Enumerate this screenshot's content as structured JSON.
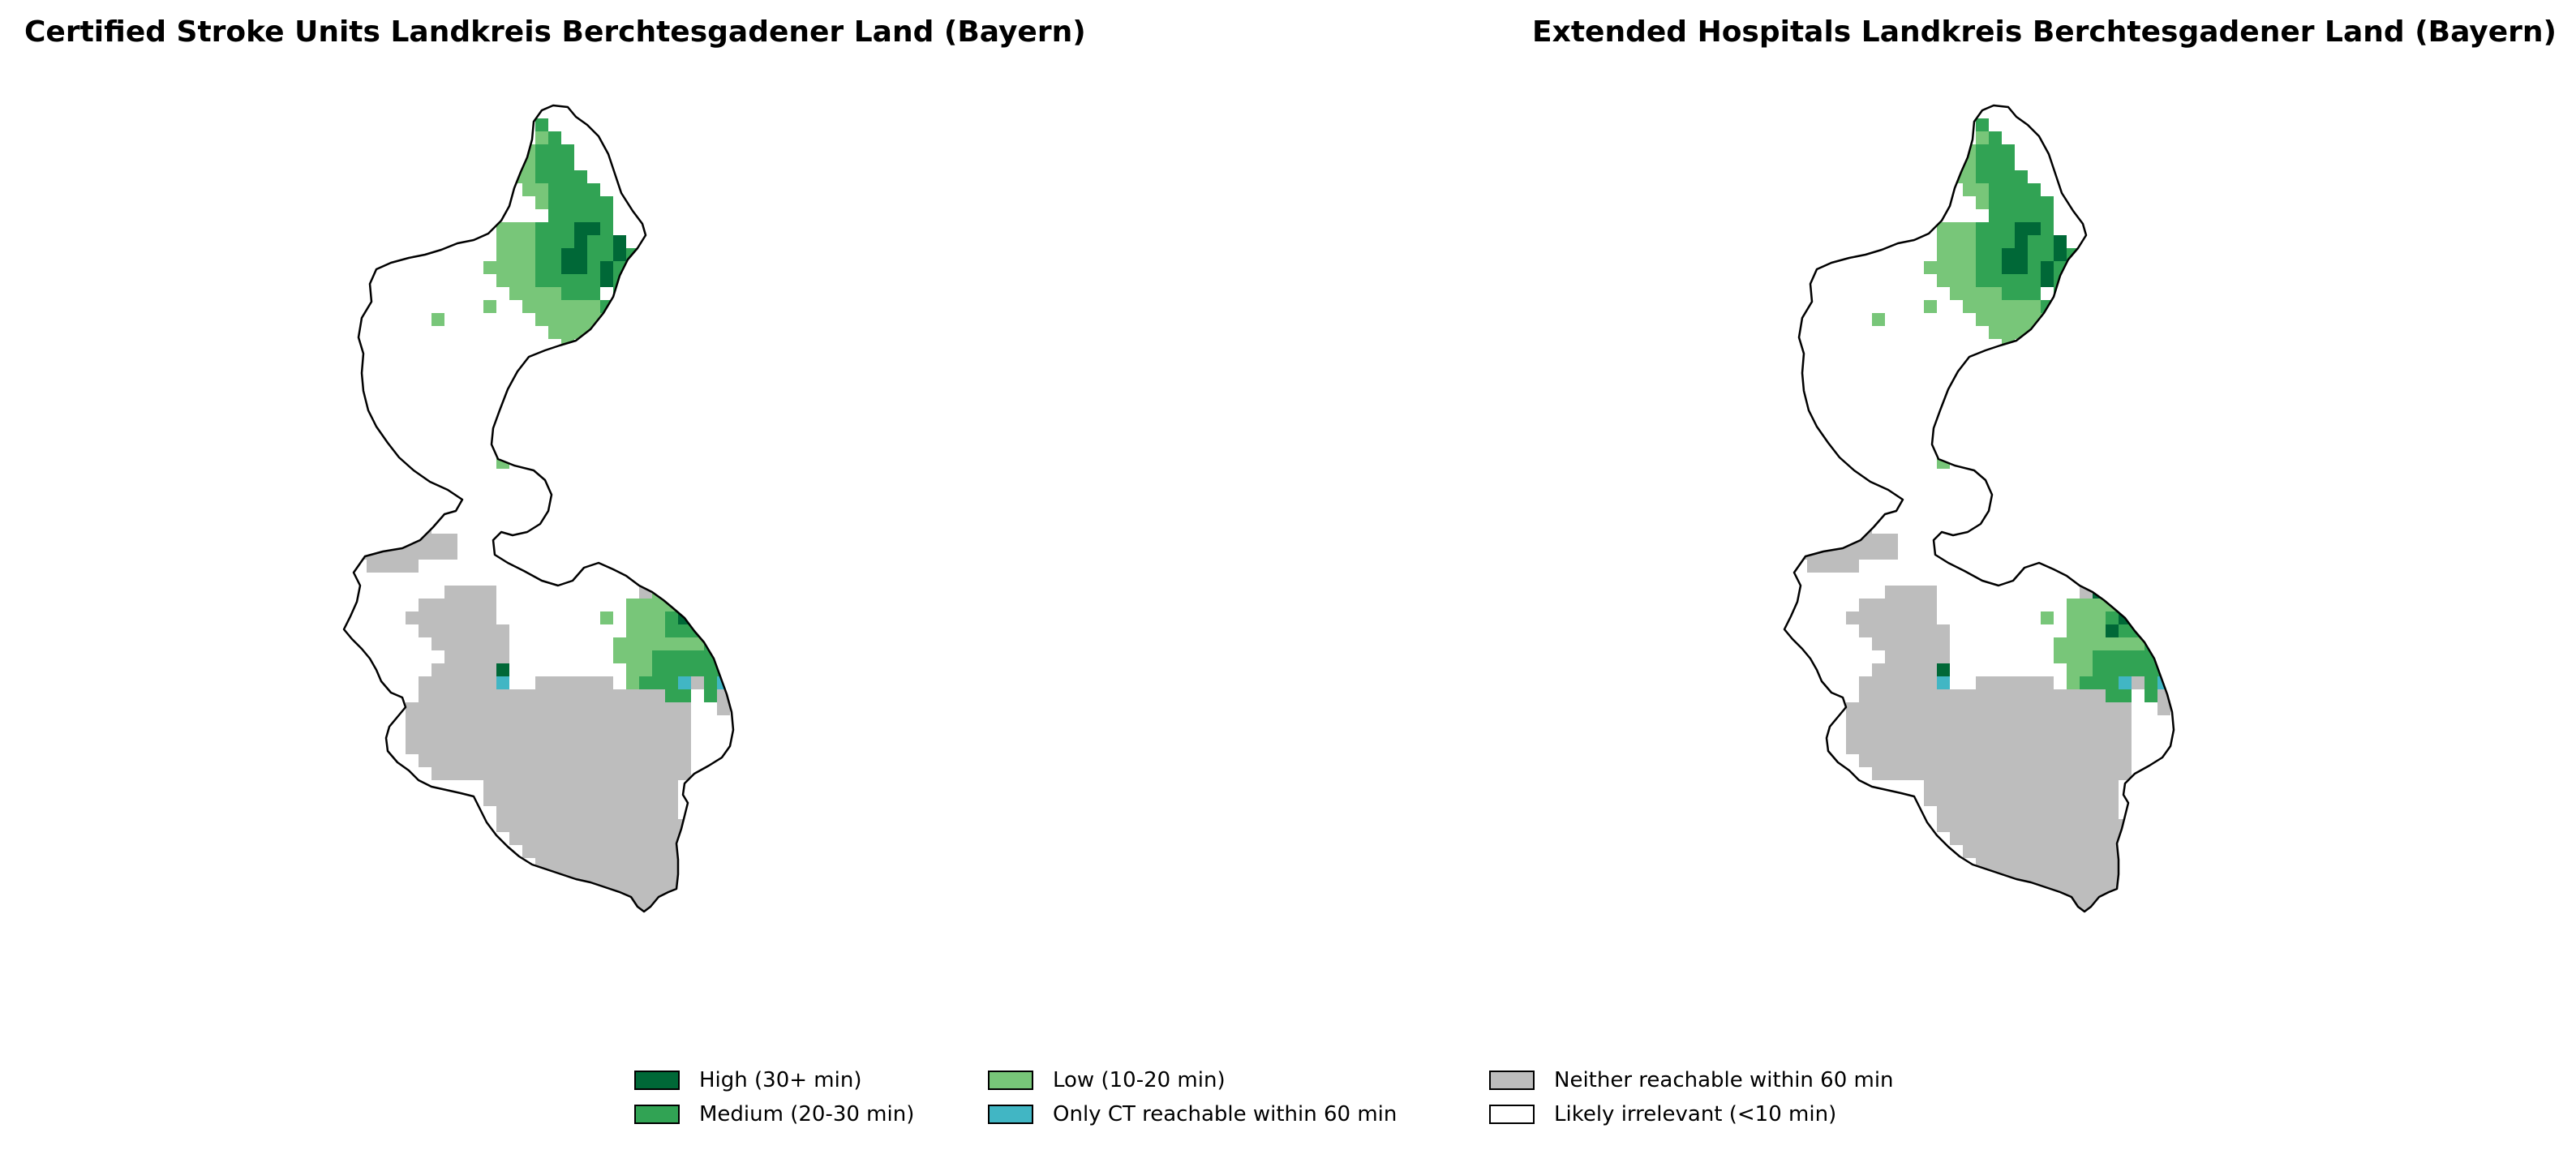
{
  "panels": [
    {
      "title": "Certified Stroke Units Landkreis Berchtesgadener Land (Bayern)"
    },
    {
      "title": "Extended Hospitals Landkreis Berchtesgadener Land (Bayern)"
    }
  ],
  "legend": {
    "items": [
      {
        "label": "High (30+ min)",
        "color": "#006837"
      },
      {
        "label": "Medium (20-30 min)",
        "color": "#31a354"
      },
      {
        "label": "Low (10-20 min)",
        "color": "#78c679"
      },
      {
        "label": "Only CT reachable within 60 min",
        "color": "#41b6c4"
      },
      {
        "label": "Neither reachable within 60 min",
        "color": "#bdbdbd"
      },
      {
        "label": "Likely irrelevant (<10 min)",
        "color": "#ffffff"
      }
    ]
  },
  "colors": {
    "outline": "#000000"
  }
}
